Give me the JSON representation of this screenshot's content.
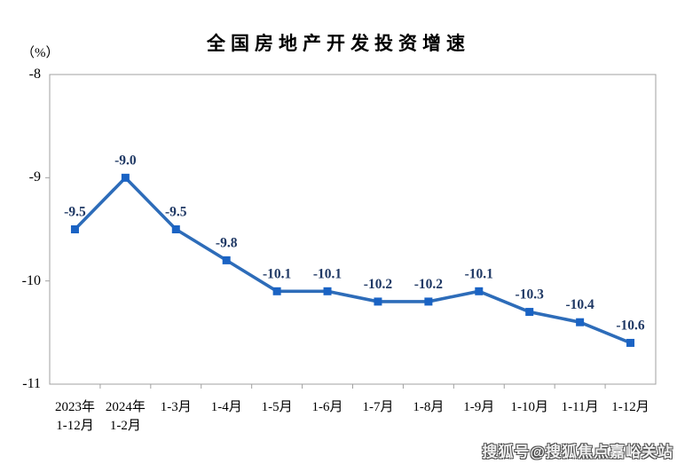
{
  "title": "全国房地产开发投资增速",
  "y_unit_label": "（%）",
  "watermark": "搜狐号@搜狐焦点嘉峪关站",
  "chart_data": {
    "type": "line",
    "title": "全国房地产开发投资增速",
    "ylabel": "（%）",
    "categories": [
      [
        "2023年",
        "1-12月"
      ],
      [
        "2024年",
        "1-2月"
      ],
      [
        "1-3月"
      ],
      [
        "1-4月"
      ],
      [
        "1-5月"
      ],
      [
        "1-6月"
      ],
      [
        "1-7月"
      ],
      [
        "1-8月"
      ],
      [
        "1-9月"
      ],
      [
        "1-10月"
      ],
      [
        "1-11月"
      ],
      [
        "1-12月"
      ]
    ],
    "values": [
      -9.5,
      -9.0,
      -9.5,
      -9.8,
      -10.1,
      -10.1,
      -10.2,
      -10.2,
      -10.1,
      -10.3,
      -10.4,
      -10.6
    ],
    "value_labels": [
      "-9.5",
      "-9.0",
      "-9.5",
      "-9.8",
      "-10.1",
      "-10.1",
      "-10.2",
      "-10.2",
      "-10.1",
      "-10.3",
      "-10.4",
      "-10.6"
    ],
    "ylim": [
      -11,
      -8
    ],
    "yticks": [
      -8,
      -9,
      -10,
      -11
    ],
    "ytick_labels": [
      "-8",
      "-9",
      "-10",
      "-11"
    ],
    "grid": false,
    "legend": "none",
    "colors": {
      "line": "#2d6cb9",
      "marker": "#1a63c4",
      "value_label": "#1f3864",
      "axis": "#a0a0a0",
      "tick_text": "#000000"
    }
  }
}
